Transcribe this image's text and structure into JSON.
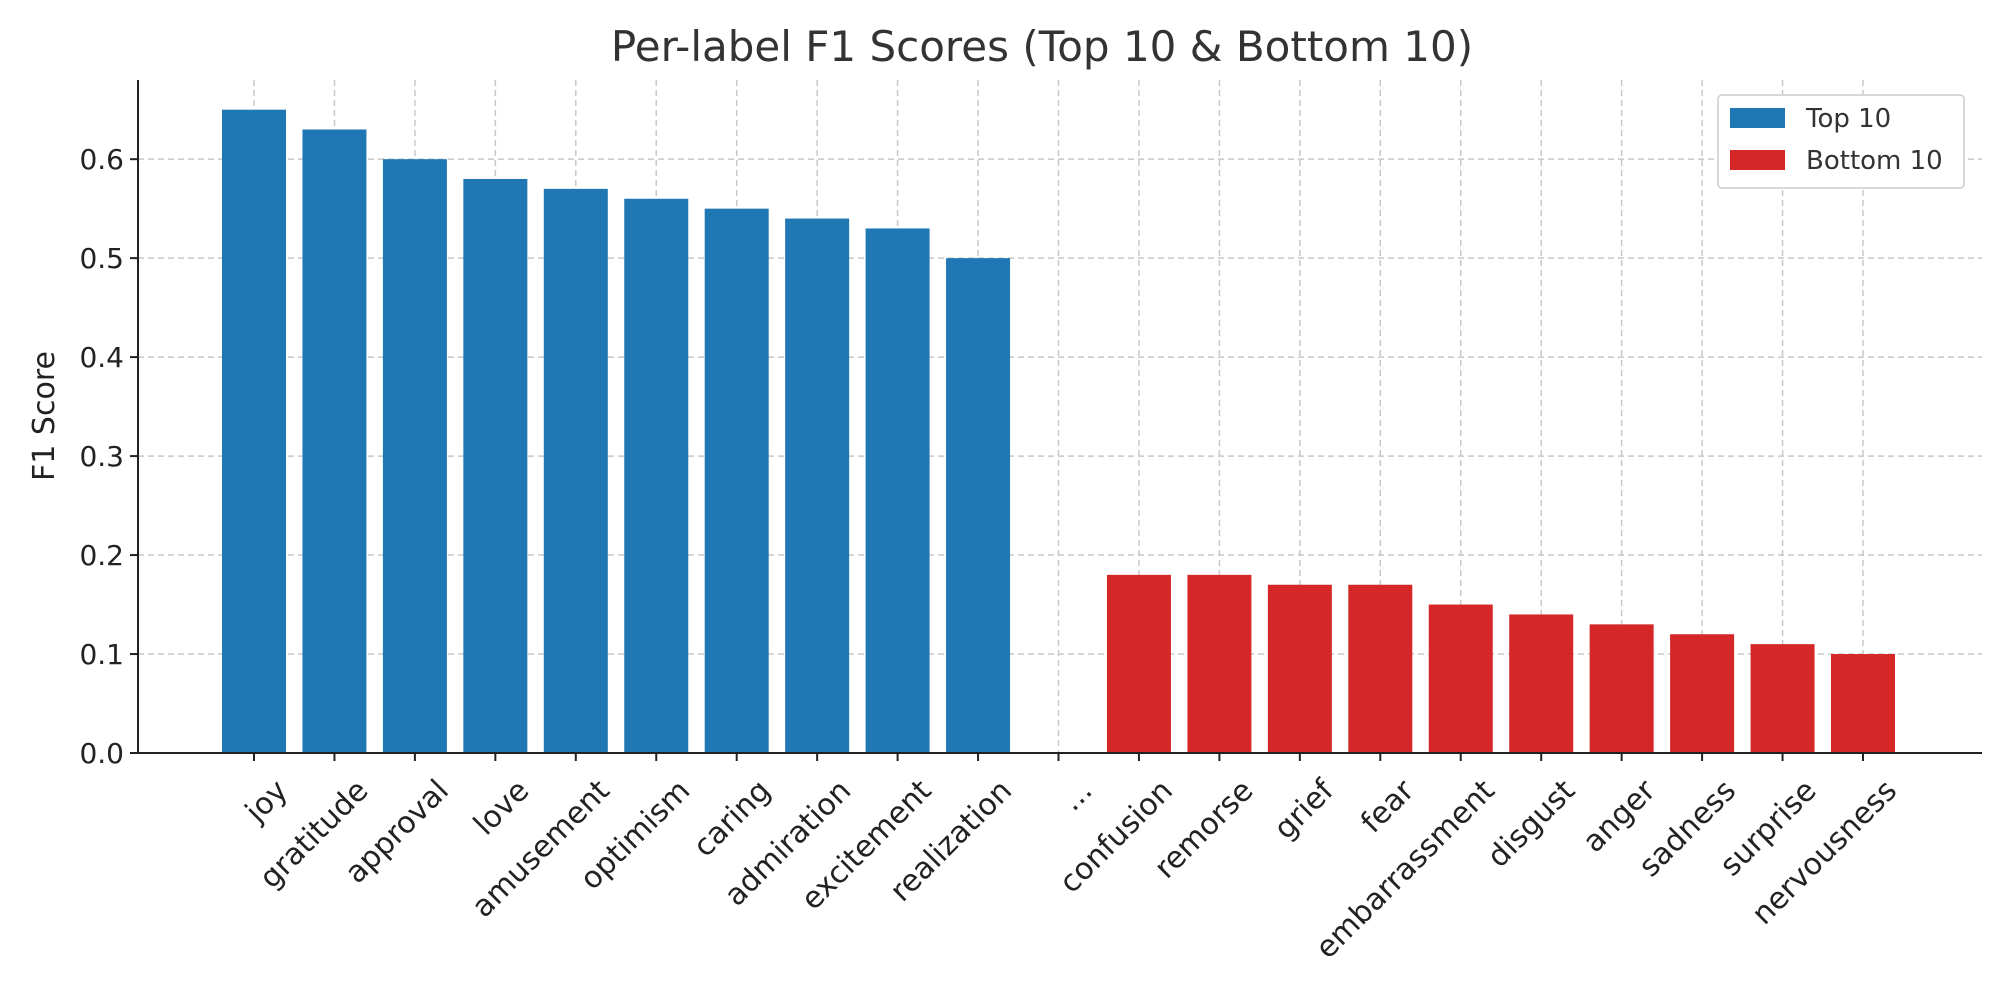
{
  "chart_data": {
    "type": "bar",
    "title": "Per-label F1 Scores (Top 10 & Bottom 10)",
    "xlabel": "",
    "ylabel": "F1 Score",
    "ylim": [
      0,
      0.68
    ],
    "yticks": [
      0.0,
      0.1,
      0.2,
      0.3,
      0.4,
      0.5,
      0.6
    ],
    "grid": true,
    "legend_position": "top-right",
    "categories": [
      "joy",
      "gratitude",
      "approval",
      "love",
      "amusement",
      "optimism",
      "caring",
      "admiration",
      "excitement",
      "realization",
      "...",
      "confusion",
      "remorse",
      "grief",
      "fear",
      "embarrassment",
      "disgust",
      "anger",
      "sadness",
      "surprise",
      "nervousness"
    ],
    "series": [
      {
        "name": "Top 10",
        "color": "#1f77b4",
        "values": [
          0.65,
          0.63,
          0.6,
          0.58,
          0.57,
          0.56,
          0.55,
          0.54,
          0.53,
          0.5,
          null,
          null,
          null,
          null,
          null,
          null,
          null,
          null,
          null,
          null,
          null
        ]
      },
      {
        "name": "Bottom 10",
        "color": "#d62728",
        "values": [
          null,
          null,
          null,
          null,
          null,
          null,
          null,
          null,
          null,
          null,
          null,
          0.18,
          0.18,
          0.17,
          0.17,
          0.15,
          0.14,
          0.13,
          0.12,
          0.11,
          0.1
        ]
      }
    ]
  }
}
